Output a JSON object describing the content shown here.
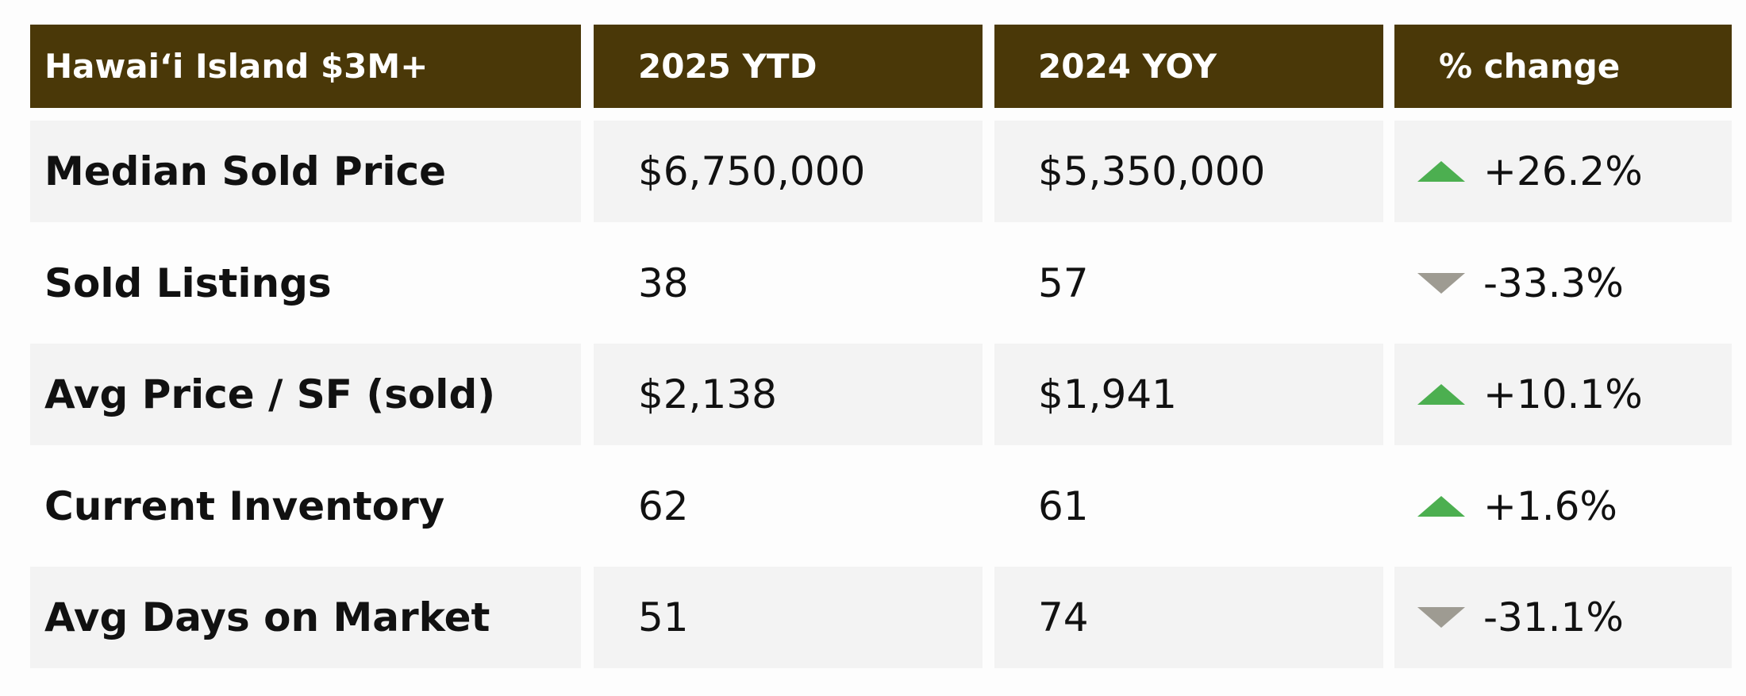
{
  "table": {
    "header": [
      "Hawaiʻi Island $3M+",
      "2025 YTD",
      "2024 YOY",
      "% change"
    ],
    "rows": [
      [
        "Median Sold Price",
        "$6,750,000",
        "$5,350,000",
        "+26.2%"
      ],
      [
        "Sold Listings",
        "38",
        "57",
        "-33.3%"
      ],
      [
        "Avg Price / SF (sold)",
        "$2,138",
        "$1,941",
        "+10.1%"
      ],
      [
        "Current Inventory",
        "62",
        "61",
        "+1.6%"
      ],
      [
        "Avg Days on Market",
        "51",
        "74",
        "-31.1%"
      ]
    ]
  }
}
